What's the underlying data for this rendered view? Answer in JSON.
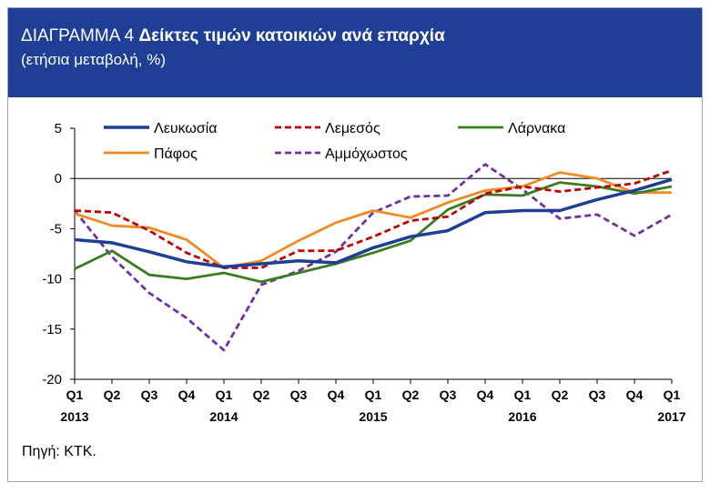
{
  "header": {
    "prefix": "ΔΙΑΓΡΑΜΜΑ 4",
    "title": "Δείκτες τιμών κατοικιών ανά επαρχία",
    "subtitle": "(ετήσια μεταβολή, %)"
  },
  "source": "Πηγή: ΚΤΚ.",
  "colors": {
    "header_bg": "#1f3e96",
    "Λευκωσία": "#1f3e96",
    "Λεμεσός": "#c00000",
    "Λάρνακα": "#3a7d1e",
    "Πάφος": "#f08a24",
    "Αμμόχωστος": "#7030a0"
  },
  "chart_data": {
    "type": "line",
    "title": "Δείκτες τιμών κατοικιών ανά επαρχία",
    "ylabel": "ετήσια μεταβολή, %",
    "xlabel": "",
    "ylim": [
      -20,
      5
    ],
    "yticks": [
      5,
      0,
      -5,
      -10,
      -15,
      -20
    ],
    "ytick_labels": [
      "5",
      "0",
      "-5",
      "-10",
      "-15",
      "-20"
    ],
    "categories": [
      "Q1",
      "Q2",
      "Q3",
      "Q4",
      "Q1",
      "Q2",
      "Q3",
      "Q4",
      "Q1",
      "Q2",
      "Q3",
      "Q4",
      "Q1",
      "Q2",
      "Q3",
      "Q4",
      "Q1"
    ],
    "years": [
      {
        "label": "2013",
        "index": 0
      },
      {
        "label": "2014",
        "index": 4
      },
      {
        "label": "2015",
        "index": 8
      },
      {
        "label": "2016",
        "index": 12
      },
      {
        "label": "2017",
        "index": 16
      }
    ],
    "legend_position": "top",
    "series": [
      {
        "name": "Λευκωσία",
        "style": "solid",
        "values": [
          -6.1,
          -6.4,
          -7.3,
          -8.3,
          -8.8,
          -8.5,
          -8.2,
          -8.4,
          -6.9,
          -5.8,
          -5.2,
          -3.4,
          -3.2,
          -3.2,
          -2.1,
          -1.2,
          -0.1
        ]
      },
      {
        "name": "Λεμεσός",
        "style": "dashed",
        "values": [
          -3.2,
          -3.4,
          -5.2,
          -7.4,
          -8.9,
          -8.9,
          -7.2,
          -7.2,
          -5.8,
          -4.2,
          -3.8,
          -1.5,
          -0.8,
          -1.3,
          -0.9,
          -0.5,
          0.8
        ]
      },
      {
        "name": "Λάρνακα",
        "style": "solid",
        "values": [
          -9.0,
          -7.2,
          -9.6,
          -10.0,
          -9.4,
          -10.3,
          -9.4,
          -8.5,
          -7.4,
          -6.2,
          -3.1,
          -1.6,
          -1.7,
          -0.4,
          -0.8,
          -1.5,
          -0.8
        ]
      },
      {
        "name": "Πάφος",
        "style": "solid",
        "values": [
          -3.5,
          -4.7,
          -4.9,
          -6.1,
          -8.9,
          -8.2,
          -6.2,
          -4.4,
          -3.2,
          -3.9,
          -2.4,
          -1.2,
          -0.8,
          0.6,
          0.0,
          -1.4,
          -1.4
        ]
      },
      {
        "name": "Αμμόχωστος",
        "style": "dashed",
        "values": [
          -3.2,
          -7.8,
          -11.4,
          -13.9,
          -17.1,
          -10.6,
          -9.2,
          -7.3,
          -3.4,
          -1.8,
          -1.7,
          1.4,
          -1.1,
          -4.0,
          -3.6,
          -5.7,
          -3.6
        ]
      }
    ]
  }
}
